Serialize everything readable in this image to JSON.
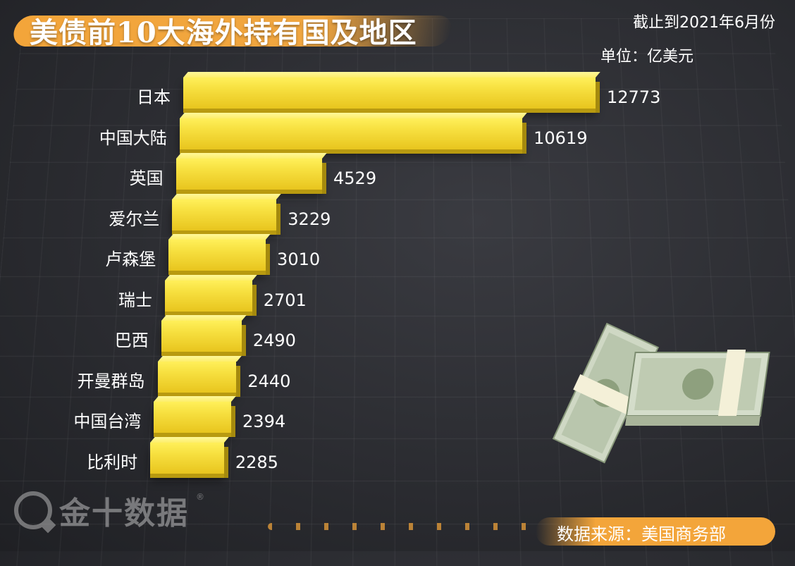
{
  "title": "美债前10大海外持有国及地区",
  "date_note": "截止到2021年6月份",
  "unit_note": "单位：亿美元",
  "source": "数据来源：美国商务部",
  "logo_text": "金十数据",
  "logo_mark": "®",
  "colors": {
    "bar": "#f7e040",
    "accent": "#f3a53a",
    "background": "#2b2c31"
  },
  "chart_data": {
    "type": "bar",
    "orientation": "horizontal",
    "title": "美债前10大海外持有国及地区",
    "categories": [
      "日本",
      "中国大陆",
      "英国",
      "爱尔兰",
      "卢森堡",
      "瑞士",
      "巴西",
      "开曼群岛",
      "中国台湾",
      "比利时"
    ],
    "values": [
      12773,
      10619,
      4529,
      3229,
      3010,
      2701,
      2490,
      2440,
      2394,
      2285
    ],
    "value_labels": [
      "12773",
      "10619",
      "4529",
      "3229",
      "3010",
      "2701",
      "2490",
      "2440",
      "2394",
      "2285"
    ],
    "xlim": [
      0,
      12773
    ],
    "grid": false,
    "legend": "none"
  }
}
